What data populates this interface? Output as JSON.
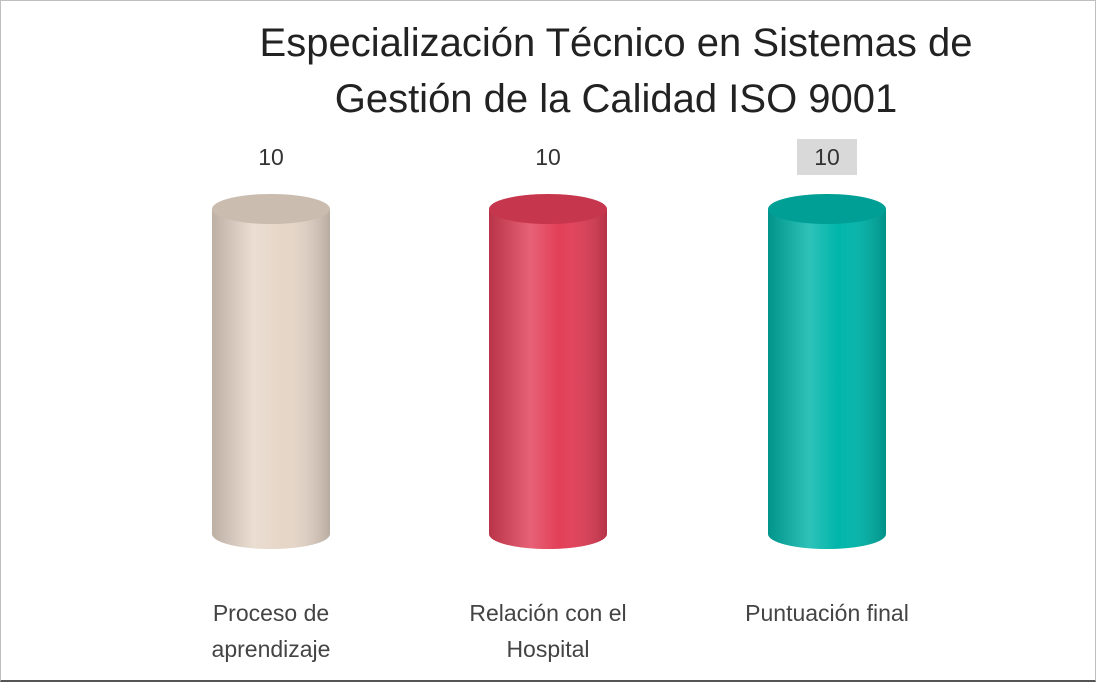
{
  "chart_data": {
    "type": "bar",
    "title": "Especialización Técnico en Sistemas de Gestión de la Calidad ISO 9001",
    "categories": [
      "Proceso de aprendizaje",
      "Relación con el Hospital",
      "Puntuación final"
    ],
    "values": [
      10,
      10,
      10
    ],
    "colors": [
      "#e6d6c8",
      "#e23f58",
      "#00b5aa"
    ]
  }
}
